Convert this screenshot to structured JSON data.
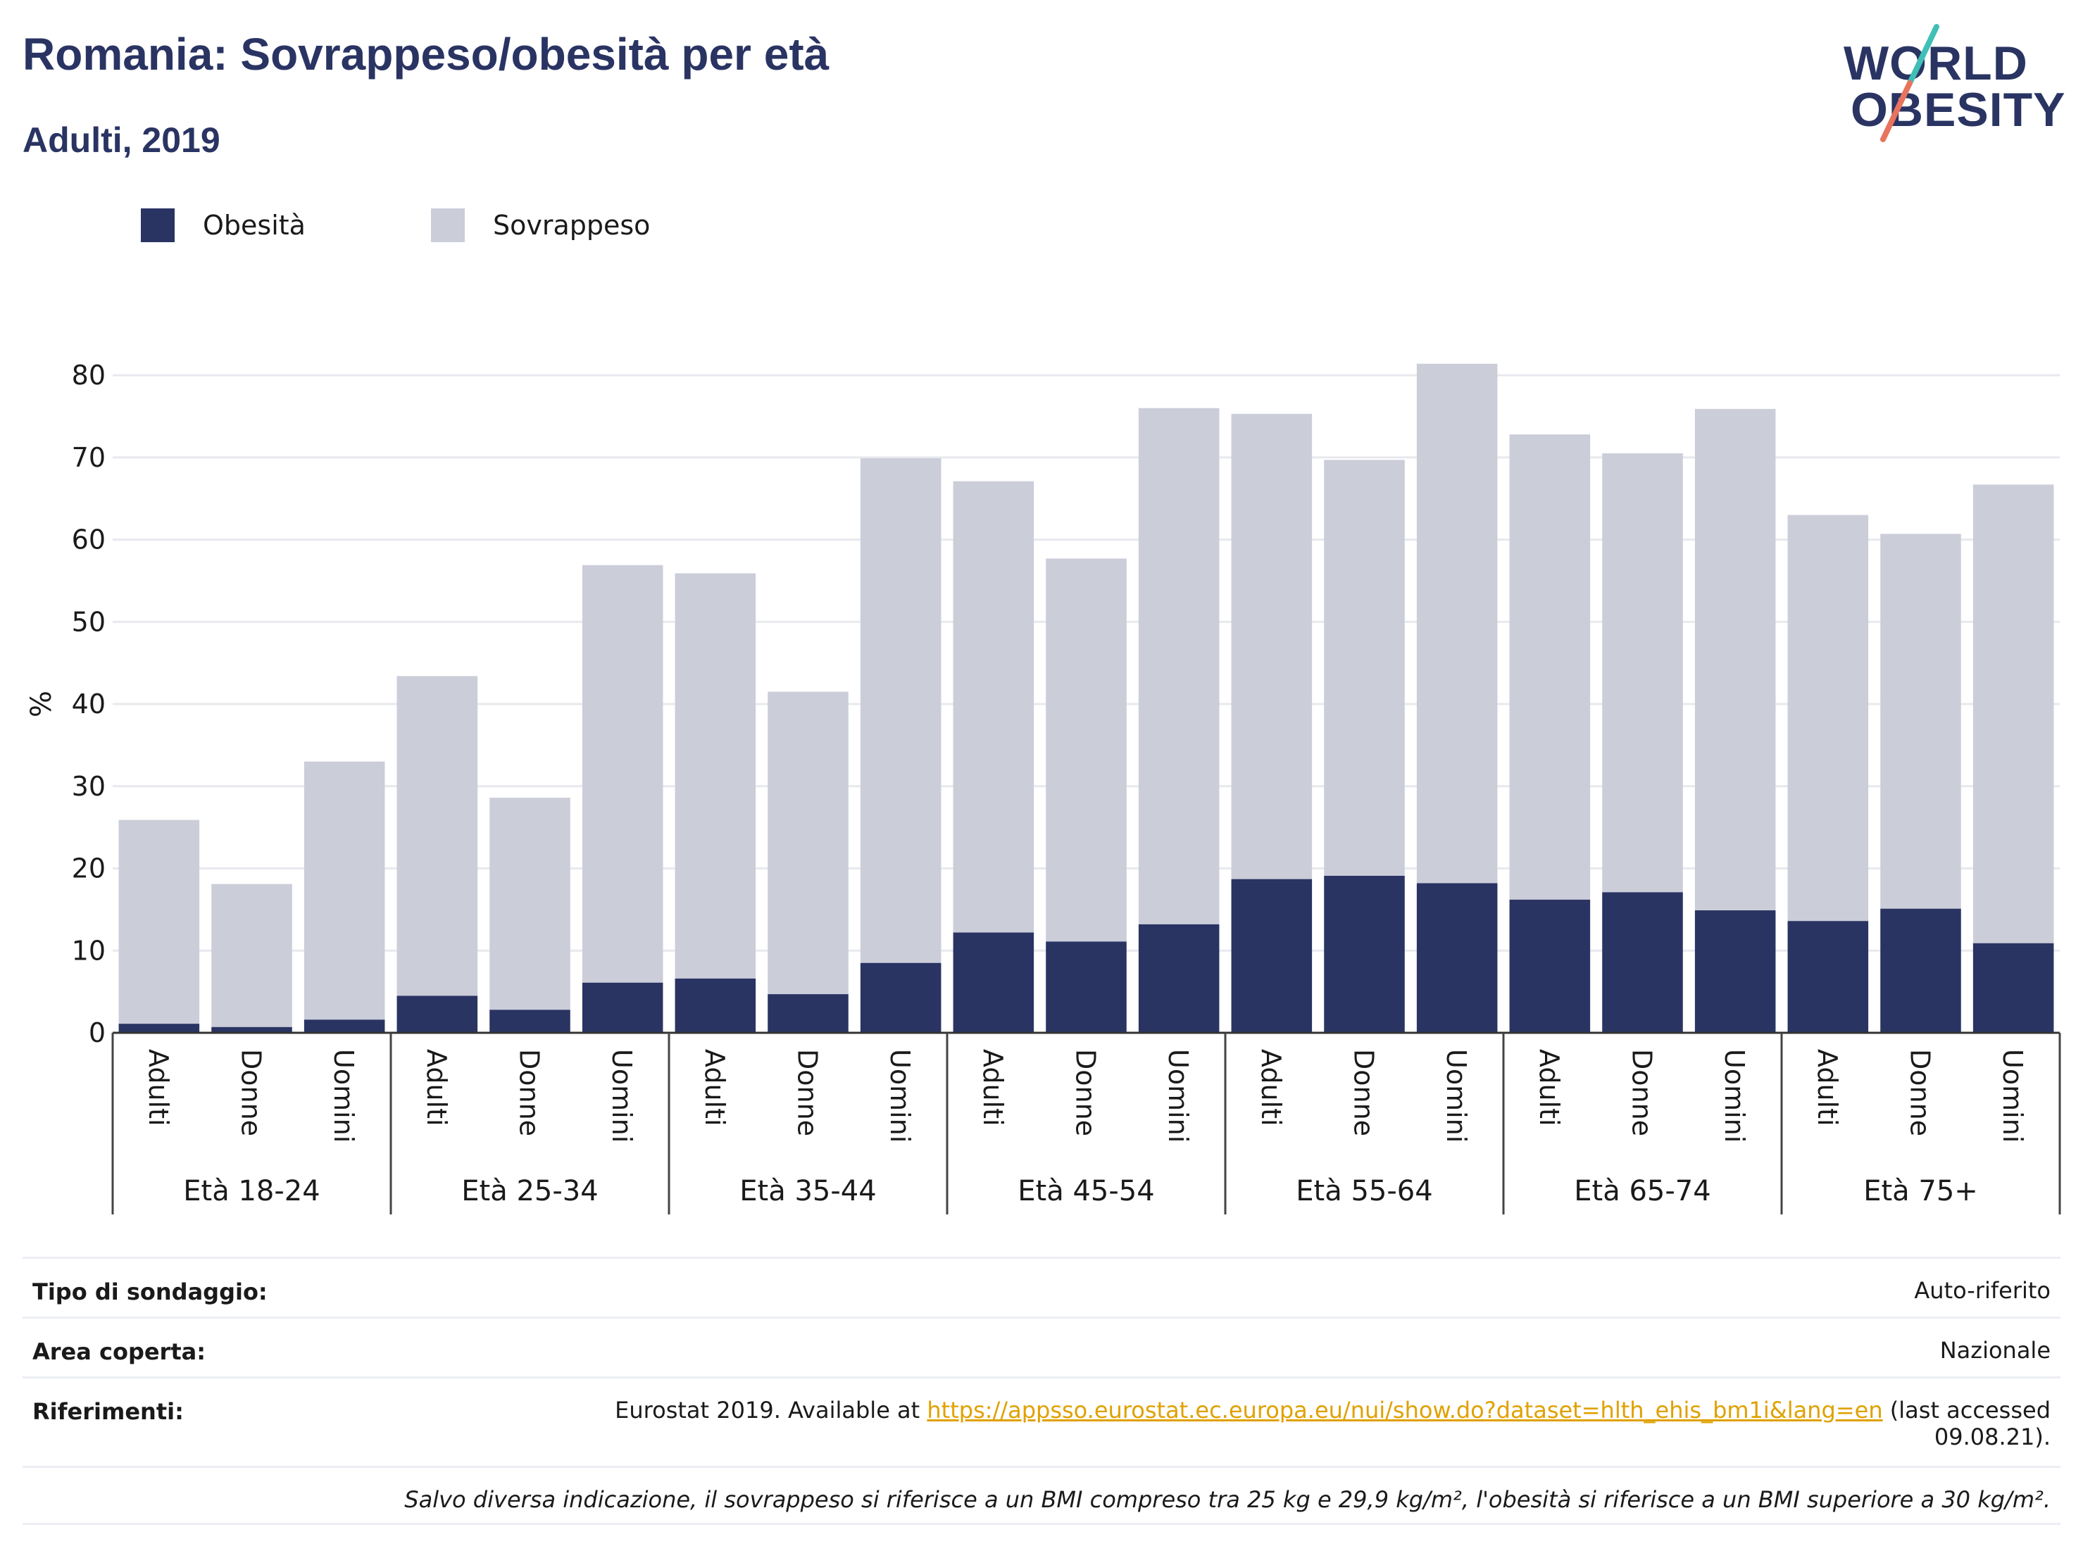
{
  "header": {
    "title": "Romania: Sovrappeso/obesità per età",
    "subtitle": "Adulti, 2019",
    "logo_line1": "WORLD",
    "logo_line2": "OBESITY"
  },
  "legend": [
    {
      "label": "Obesità",
      "color": "#2a3463"
    },
    {
      "label": "Sovrappeso",
      "color": "#cbcdd9"
    }
  ],
  "chart_data": {
    "type": "bar",
    "stacked": true,
    "ylabel": "%",
    "ylim": [
      0,
      80
    ],
    "yticks": [
      0,
      10,
      20,
      30,
      40,
      50,
      60,
      70,
      80
    ],
    "grid": true,
    "legend_position": "top-left",
    "categories": [
      "Adulti",
      "Donne",
      "Uomini",
      "Adulti",
      "Donne",
      "Uomini",
      "Adulti",
      "Donne",
      "Uomini",
      "Adulti",
      "Donne",
      "Uomini",
      "Adulti",
      "Donne",
      "Uomini",
      "Adulti",
      "Donne",
      "Uomini",
      "Adulti",
      "Donne",
      "Uomini"
    ],
    "groups": [
      "Età 18-24",
      "Età 25-34",
      "Età 35-44",
      "Età 45-54",
      "Età 55-64",
      "Età 65-74",
      "Età 75+"
    ],
    "series": [
      {
        "name": "Obesità",
        "color": "#2a3463",
        "values": [
          1.1,
          0.7,
          1.6,
          4.5,
          2.8,
          6.1,
          6.6,
          4.7,
          8.5,
          12.2,
          11.1,
          13.2,
          18.7,
          19.1,
          18.2,
          16.2,
          17.1,
          14.9,
          13.6,
          15.1,
          10.9
        ]
      },
      {
        "name": "Sovrappeso",
        "color": "#cbcdd9",
        "values": [
          24.8,
          17.4,
          31.4,
          38.9,
          25.8,
          50.8,
          49.3,
          36.8,
          61.4,
          54.9,
          46.6,
          62.8,
          56.6,
          50.6,
          63.2,
          56.6,
          53.4,
          61.0,
          49.4,
          45.6,
          55.8
        ]
      }
    ]
  },
  "info": {
    "survey_label": "Tipo di sondaggio:",
    "survey_value": "Auto-riferito",
    "area_label": "Area coperta:",
    "area_value": "Nazionale",
    "refs_label": "Riferimenti:",
    "refs_prefix": "Eurostat 2019. Available at ",
    "refs_link": "https://appsso.eurostat.ec.europa.eu/nui/show.do?dataset=hlth_ehis_bm1i&lang=en",
    "refs_suffix": " (last accessed",
    "refs_date": "09.08.21).",
    "note": "Salvo diversa indicazione, il sovrappeso si riferisce a un BMI compreso tra 25 kg e 29,9 kg/m², l'obesità si riferisce a un BMI superiore a 30 kg/m²."
  }
}
